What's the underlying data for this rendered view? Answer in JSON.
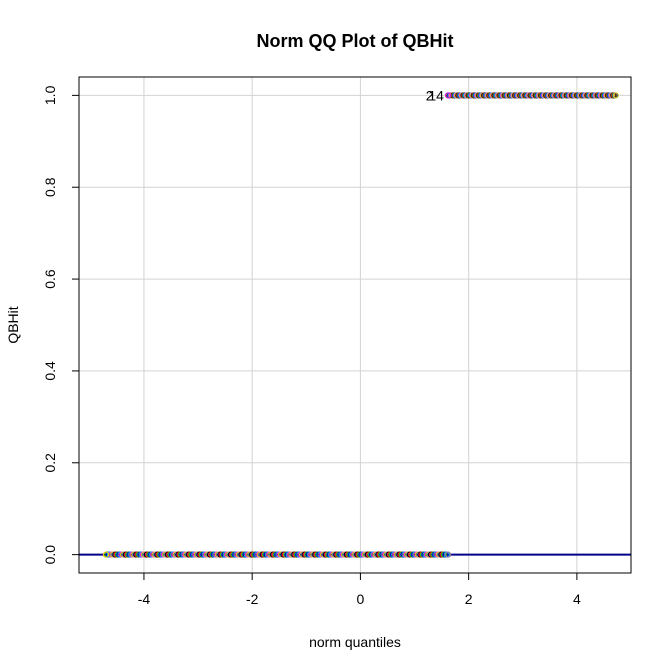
{
  "chart_data": {
    "type": "scatter",
    "title": "Norm QQ Plot of QBHit",
    "xlabel": "norm quantiles",
    "ylabel": "QBHit",
    "xlim": [
      -5.2,
      5.0
    ],
    "ylim": [
      -0.04,
      1.04
    ],
    "x_ticks": [
      -4,
      -2,
      0,
      2,
      4
    ],
    "y_ticks": [
      0.0,
      0.2,
      0.4,
      0.6,
      0.8,
      1.0
    ],
    "x_tick_labels": [
      "-4",
      "-2",
      "0",
      "2",
      "4"
    ],
    "y_tick_labels": [
      "0.0",
      "0.2",
      "0.4",
      "0.6",
      "0.8",
      "1.0"
    ],
    "grid": true,
    "reference_line": {
      "intercept": 0,
      "slope": 0,
      "color": "#00008b"
    },
    "series": [
      {
        "x_range": [
          -4.7,
          1.62
        ],
        "y": 0,
        "x_extremes": [
          -4.7,
          1.62
        ]
      },
      {
        "x_range": [
          1.62,
          4.72
        ],
        "y": 1,
        "x_extremes": [
          1.62,
          4.72
        ]
      }
    ],
    "point_colors": [
      "#ff0000",
      "#00cd00",
      "#0000ff",
      "#00cccc",
      "#ff00ff",
      "#ffd700",
      "#888888",
      "#000000"
    ],
    "annotations": [
      {
        "text": "2",
        "x": 1.28,
        "y": 1.0
      },
      {
        "text": "14",
        "x": 1.4,
        "y": 1.0
      }
    ]
  }
}
